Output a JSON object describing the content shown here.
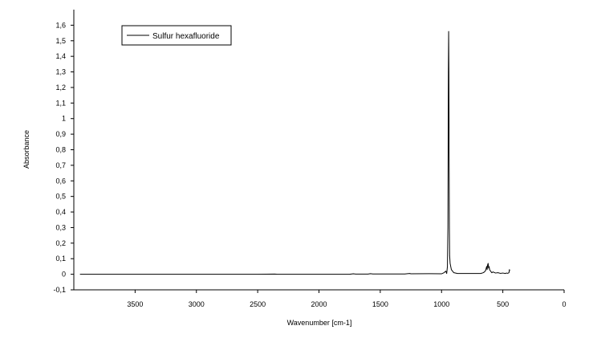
{
  "chart_data": {
    "type": "line",
    "title": "",
    "xlabel": "Wavenumber [cm-1]",
    "ylabel": "Absorbance",
    "xlim": [
      4000,
      0
    ],
    "ylim": [
      -0.1,
      1.7
    ],
    "x_reversed": true,
    "grid": false,
    "legend_position": "top-left",
    "x_ticks": [
      3500,
      3000,
      2500,
      2000,
      1500,
      1000,
      500,
      0
    ],
    "x_tick_labels": [
      "3500",
      "3000",
      "2500",
      "2000",
      "1500",
      "1000",
      "500",
      "0"
    ],
    "y_ticks": [
      -0.1,
      0,
      0.1,
      0.2,
      0.3,
      0.4,
      0.5,
      0.6,
      0.7,
      0.8,
      0.9,
      1,
      1.1,
      1.2,
      1.3,
      1.4,
      1.5,
      1.6
    ],
    "y_tick_labels": [
      "-0,1",
      "0",
      "0,1",
      "0,2",
      "0,3",
      "0,4",
      "0,5",
      "0,6",
      "0,7",
      "0,8",
      "0,9",
      "1",
      "1,1",
      "1,2",
      "1,3",
      "1,4",
      "1,5",
      "1,6"
    ],
    "series": [
      {
        "name": "Sulfur hexafluoride",
        "color": "#000000",
        "x": [
          3950,
          3500,
          3000,
          2500,
          2360,
          2340,
          2000,
          1750,
          1720,
          1700,
          1600,
          1580,
          1560,
          1300,
          1260,
          1250,
          1100,
          1000,
          980,
          965,
          958,
          952,
          948,
          946,
          944,
          942,
          940,
          938,
          936,
          934,
          930,
          925,
          920,
          900,
          870,
          760,
          700,
          680,
          660,
          650,
          640,
          632,
          628,
          624,
          620,
          616,
          612,
          608,
          600,
          590,
          580,
          560,
          540,
          520,
          500,
          480,
          470,
          460,
          450,
          446,
          444
        ],
        "y": [
          0.0,
          0.0,
          0.0,
          0.0,
          0.001,
          0.0,
          0.0,
          0.0,
          0.003,
          0.001,
          0.001,
          0.004,
          0.002,
          0.002,
          0.005,
          0.003,
          0.004,
          0.003,
          0.01,
          0.02,
          0.005,
          0.05,
          0.3,
          0.8,
          1.3,
          1.56,
          1.3,
          0.7,
          0.3,
          0.12,
          0.07,
          0.05,
          0.03,
          0.01,
          0.005,
          0.005,
          0.005,
          0.005,
          0.01,
          0.015,
          0.025,
          0.05,
          0.03,
          0.06,
          0.07,
          0.04,
          0.05,
          0.03,
          0.02,
          0.01,
          0.015,
          0.008,
          0.01,
          0.006,
          0.008,
          0.005,
          0.008,
          0.006,
          0.01,
          0.03,
          0.02
        ]
      }
    ]
  }
}
